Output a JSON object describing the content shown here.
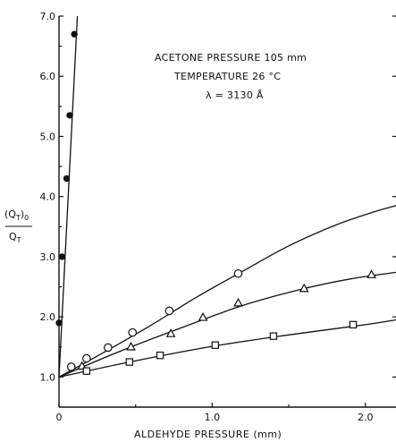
{
  "chart_data": {
    "type": "scatter",
    "title": "",
    "xlabel": "ALDEHYDE PRESSURE (mm)",
    "ylabel_top": "(Q",
    "ylabel_top_sub": "T",
    "ylabel_top_close": ")",
    "ylabel_top_sub2": "0",
    "ylabel_bottom": "Q",
    "ylabel_bottom_sub": "T",
    "xlim": [
      0,
      2.2
    ],
    "ylim": [
      0.5,
      7.0
    ],
    "x_ticks": [
      0,
      1.0,
      2.0
    ],
    "x_tick_labels": [
      "0",
      "1.0",
      "2.0"
    ],
    "y_ticks": [
      1.0,
      2.0,
      3.0,
      4.0,
      5.0,
      6.0,
      7.0
    ],
    "y_tick_labels": [
      "1.0",
      "2.0",
      "3.0",
      "4.0",
      "5.0",
      "6.0",
      "7.0"
    ],
    "annotations": [
      "ACETONE PRESSURE 105 mm",
      "TEMPERATURE 26 °C",
      "λ = 3130 Å"
    ],
    "series": [
      {
        "marker": "filled-circle",
        "x": [
          0.0,
          0.02,
          0.05,
          0.07,
          0.1
        ],
        "y": [
          1.9,
          3.0,
          4.3,
          5.35,
          6.7
        ],
        "fit_line": [
          [
            0,
            1.0
          ],
          [
            0.12,
            7.0
          ]
        ]
      },
      {
        "marker": "circle",
        "x": [
          0.08,
          0.18,
          0.32,
          0.48,
          0.72,
          1.17
        ],
        "y": [
          1.17,
          1.31,
          1.49,
          1.74,
          2.1,
          2.72
        ],
        "fit_curve": [
          [
            0,
            1.0
          ],
          [
            0.3,
            1.42
          ],
          [
            0.6,
            1.86
          ],
          [
            0.9,
            2.33
          ],
          [
            1.2,
            2.76
          ],
          [
            1.5,
            3.18
          ],
          [
            1.8,
            3.52
          ],
          [
            2.05,
            3.74
          ],
          [
            2.2,
            3.85
          ]
        ]
      },
      {
        "marker": "triangle",
        "x": [
          0.15,
          0.47,
          0.73,
          0.94,
          1.17,
          1.6,
          2.04
        ],
        "y": [
          1.18,
          1.5,
          1.72,
          1.99,
          2.23,
          2.47,
          2.7
        ],
        "fit_curve": [
          [
            0,
            1.0
          ],
          [
            0.4,
            1.43
          ],
          [
            0.8,
            1.82
          ],
          [
            1.2,
            2.19
          ],
          [
            1.6,
            2.47
          ],
          [
            1.9,
            2.63
          ],
          [
            2.2,
            2.74
          ]
        ]
      },
      {
        "marker": "square",
        "x": [
          0.18,
          0.46,
          0.66,
          1.02,
          1.4,
          1.92
        ],
        "y": [
          1.1,
          1.25,
          1.36,
          1.53,
          1.68,
          1.87
        ],
        "fit_curve": [
          [
            0,
            1.0
          ],
          [
            0.5,
            1.27
          ],
          [
            1.0,
            1.51
          ],
          [
            1.5,
            1.7
          ],
          [
            2.0,
            1.87
          ],
          [
            2.2,
            1.95
          ]
        ]
      }
    ]
  }
}
